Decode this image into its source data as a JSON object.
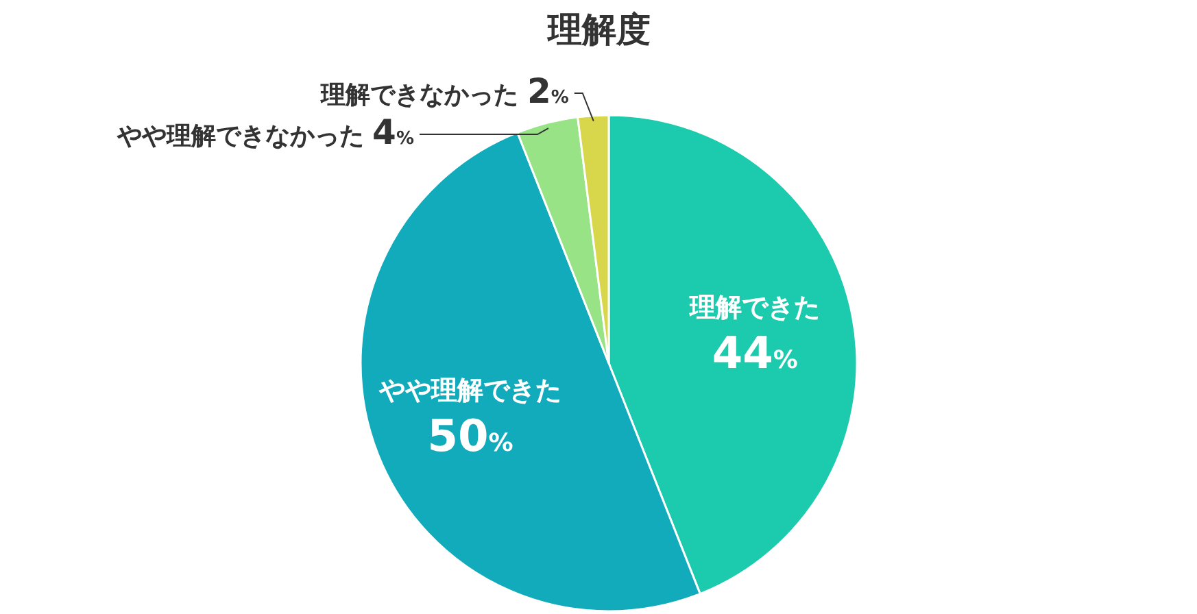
{
  "chart_data": {
    "type": "pie",
    "title": "理解度",
    "categories": [
      "理解できた",
      "やや理解できた",
      "やや理解できなかった",
      "理解できなかった"
    ],
    "values": [
      44,
      50,
      4,
      2
    ],
    "value_labels": [
      "44%",
      "50%",
      "4%",
      "2%"
    ],
    "colors": [
      "#1ccbad",
      "#11abbb",
      "#98e386",
      "#d8d64a"
    ],
    "legend": false
  }
}
